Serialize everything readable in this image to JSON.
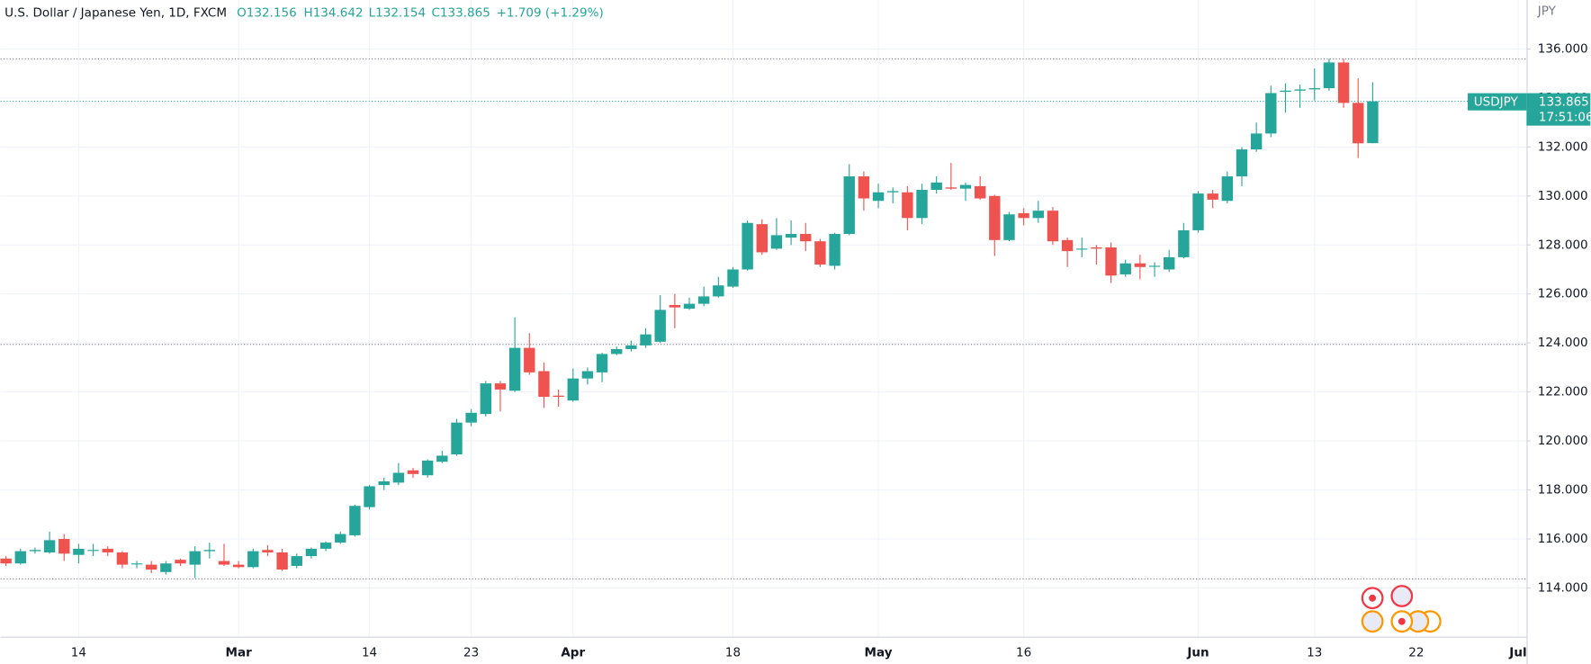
{
  "header": {
    "symbol": "U.S. Dollar / Japanese Yen, 1D, FXCM",
    "open": "O132.156",
    "high": "H134.642",
    "low": "L132.154",
    "close": "C133.865",
    "change": "+1.709 (+1.29%)"
  },
  "chart_data": {
    "type": "candlestick",
    "currency": "JPY",
    "up_color": "#26a69a",
    "down_color": "#ef5350",
    "categories": [
      null,
      null,
      null,
      null,
      null,
      "14",
      null,
      null,
      null,
      null,
      null,
      null,
      null,
      null,
      null,
      null,
      "Mar",
      null,
      null,
      null,
      null,
      null,
      null,
      null,
      null,
      "14",
      null,
      null,
      null,
      null,
      null,
      null,
      "23",
      null,
      null,
      null,
      null,
      null,
      null,
      "Apr",
      null,
      null,
      null,
      null,
      null,
      null,
      null,
      null,
      null,
      null,
      "18",
      null,
      null,
      null,
      null,
      null,
      null,
      null,
      null,
      null,
      "May",
      null,
      null,
      null,
      null,
      null,
      null,
      null,
      null,
      null,
      "16",
      null,
      null,
      null,
      null,
      null,
      null,
      null,
      null,
      null,
      null,
      null,
      "Jun",
      null,
      null,
      null,
      null,
      null,
      null,
      null,
      "13",
      null,
      null,
      null,
      null,
      null,
      null,
      "22",
      null,
      null,
      null,
      null,
      null,
      null,
      "Jul"
    ],
    "open": [
      115.2,
      115.0,
      115.5,
      115.45,
      116.0,
      115.35,
      115.55,
      115.6,
      115.45,
      115.0,
      114.95,
      114.65,
      115.15,
      114.95,
      115.5,
      115.1,
      114.95,
      114.85,
      115.55,
      115.45,
      114.9,
      115.3,
      115.6,
      115.85,
      116.15,
      117.3,
      118.2,
      118.3,
      118.8,
      118.6,
      119.15,
      119.45,
      120.75,
      121.1,
      122.35,
      122.05,
      123.8,
      122.85,
      121.85,
      121.65,
      122.55,
      122.8,
      123.55,
      123.75,
      123.9,
      124.05,
      125.55,
      125.4,
      125.6,
      125.9,
      126.3,
      127.0,
      128.85,
      127.85,
      128.3,
      128.45,
      128.15,
      127.15,
      128.45,
      130.8,
      129.8,
      130.15,
      130.15,
      129.1,
      130.25,
      130.35,
      130.3,
      130.4,
      130.0,
      128.2,
      129.3,
      129.1,
      129.4,
      128.2,
      127.85,
      127.9,
      127.9,
      126.8,
      127.25,
      127.15,
      127.0,
      127.5,
      128.6,
      130.1,
      129.8,
      130.8,
      131.9,
      132.55,
      134.25,
      134.3,
      134.35,
      134.4,
      135.45,
      133.8,
      132.156,
      null,
      null,
      null,
      null,
      null,
      null,
      null,
      null,
      null,
      null
    ],
    "high": [
      115.3,
      115.6,
      115.65,
      116.3,
      116.2,
      115.8,
      115.8,
      115.7,
      115.5,
      115.1,
      115.1,
      115.1,
      115.2,
      115.7,
      115.85,
      115.8,
      115.1,
      115.6,
      115.75,
      115.6,
      115.4,
      115.65,
      115.9,
      116.3,
      117.4,
      118.2,
      118.5,
      119.1,
      118.9,
      119.25,
      119.6,
      120.9,
      121.3,
      122.45,
      122.45,
      125.05,
      124.4,
      123.2,
      122.1,
      122.95,
      123.0,
      123.6,
      123.85,
      124.1,
      124.6,
      125.95,
      126.0,
      125.85,
      126.3,
      126.7,
      127.1,
      129.0,
      129.05,
      129.1,
      129.0,
      128.9,
      128.25,
      128.5,
      131.3,
      131.0,
      130.5,
      130.35,
      130.4,
      130.5,
      130.8,
      131.35,
      130.55,
      130.8,
      130.05,
      129.35,
      129.5,
      129.8,
      129.55,
      128.3,
      128.3,
      128.0,
      128.1,
      127.4,
      127.6,
      127.3,
      127.8,
      128.9,
      130.2,
      130.25,
      131.0,
      132.0,
      133.0,
      134.5,
      134.6,
      134.55,
      135.2,
      135.6,
      135.6,
      134.8,
      134.642,
      null,
      null,
      null,
      null,
      null,
      null,
      null,
      null,
      null,
      null
    ],
    "low": [
      114.9,
      114.95,
      115.4,
      115.4,
      115.1,
      115.0,
      115.3,
      115.3,
      114.8,
      114.8,
      114.6,
      114.55,
      114.9,
      114.4,
      115.2,
      114.9,
      114.8,
      114.8,
      115.3,
      114.7,
      114.8,
      115.2,
      115.5,
      115.8,
      116.1,
      117.2,
      118.0,
      118.2,
      118.5,
      118.5,
      119.1,
      119.4,
      120.6,
      121.0,
      121.2,
      122.0,
      122.7,
      121.35,
      121.4,
      121.6,
      122.3,
      122.4,
      123.5,
      123.65,
      123.8,
      124.0,
      124.6,
      125.35,
      125.5,
      125.85,
      126.25,
      126.95,
      127.6,
      127.8,
      128.0,
      127.75,
      127.1,
      127.0,
      128.4,
      129.4,
      129.5,
      129.7,
      128.6,
      128.85,
      130.1,
      130.25,
      129.8,
      129.85,
      127.55,
      128.15,
      128.8,
      128.9,
      128.0,
      127.1,
      127.5,
      127.2,
      126.45,
      126.7,
      126.6,
      126.7,
      126.9,
      127.45,
      128.5,
      129.5,
      129.7,
      130.4,
      131.8,
      132.4,
      133.4,
      133.6,
      133.9,
      134.3,
      133.6,
      131.55,
      132.154,
      null,
      null,
      null,
      null,
      null,
      null,
      null,
      null,
      null,
      null
    ],
    "close": [
      115.0,
      115.5,
      115.55,
      115.95,
      115.4,
      115.6,
      115.55,
      115.45,
      114.95,
      115.0,
      114.75,
      115.0,
      115.0,
      115.5,
      115.55,
      114.95,
      114.85,
      115.5,
      115.45,
      114.75,
      115.3,
      115.6,
      115.85,
      116.2,
      117.35,
      118.15,
      118.35,
      118.7,
      118.65,
      119.2,
      119.4,
      120.75,
      121.15,
      122.35,
      122.1,
      123.8,
      122.8,
      121.8,
      121.8,
      122.55,
      122.85,
      123.55,
      123.75,
      123.9,
      124.35,
      125.35,
      125.45,
      125.6,
      125.9,
      126.35,
      127.0,
      128.9,
      127.7,
      128.4,
      128.45,
      128.15,
      127.2,
      128.45,
      130.8,
      129.9,
      130.15,
      130.2,
      129.1,
      130.25,
      130.55,
      130.3,
      130.45,
      129.9,
      128.2,
      129.25,
      129.1,
      129.4,
      128.15,
      127.75,
      127.85,
      127.85,
      126.75,
      127.25,
      127.1,
      127.15,
      127.5,
      128.6,
      130.1,
      129.85,
      130.8,
      131.9,
      132.55,
      134.2,
      134.3,
      134.35,
      134.4,
      135.45,
      133.8,
      132.15,
      133.865,
      null,
      null,
      null,
      null,
      null,
      null,
      null,
      null,
      null,
      null
    ],
    "ylim": [
      112.0,
      138.0
    ],
    "yticks": [
      {
        "value": 114,
        "label": "114.000"
      },
      {
        "value": 116,
        "label": "116.000"
      },
      {
        "value": 118,
        "label": "118.000"
      },
      {
        "value": 120,
        "label": "120.000"
      },
      {
        "value": 122,
        "label": "122.000"
      },
      {
        "value": 124,
        "label": "124.000"
      },
      {
        "value": 126,
        "label": "126.000"
      },
      {
        "value": 128,
        "label": "128.000"
      },
      {
        "value": 130,
        "label": "130.000"
      },
      {
        "value": 132,
        "label": "132.000"
      },
      {
        "value": 134,
        "label": "134.000"
      },
      {
        "value": 136,
        "label": "136.000"
      }
    ],
    "grid": true,
    "horizontal_lines": [
      135.59,
      123.94,
      114.37
    ],
    "last_price": {
      "symbol": "USDJPY",
      "value": 133.865,
      "countdown": "17:51:06"
    }
  }
}
